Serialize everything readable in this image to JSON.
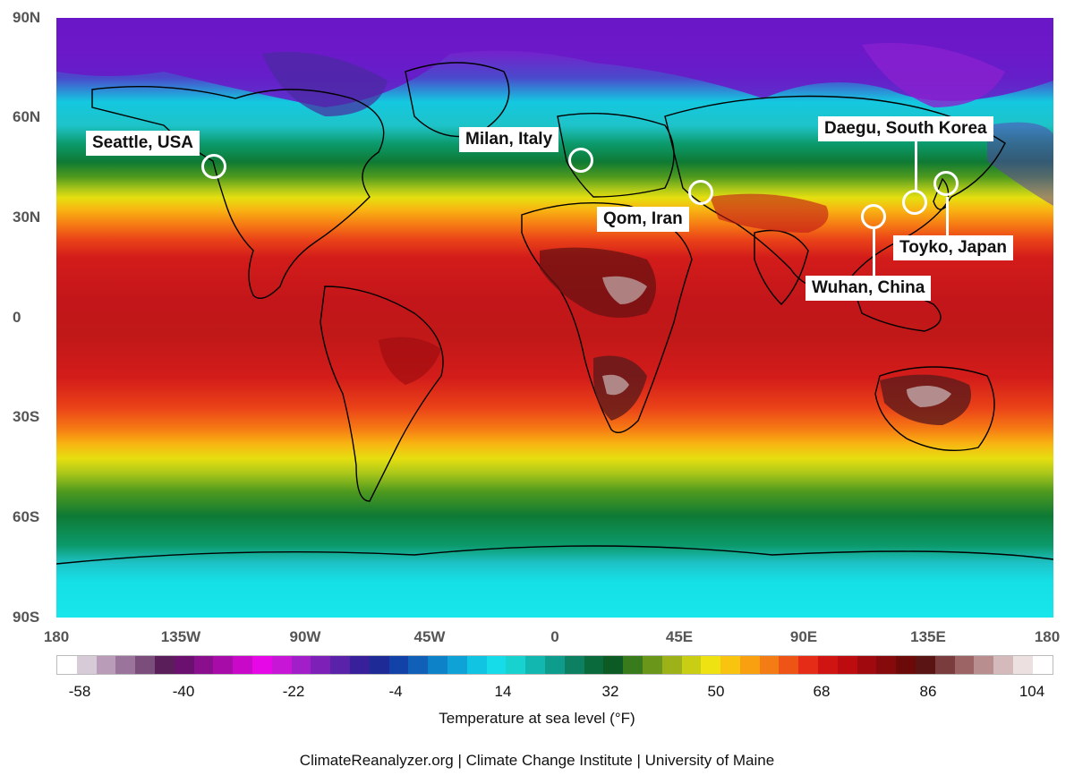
{
  "map": {
    "lat_ticks": [
      "90N",
      "60N",
      "30N",
      "0",
      "30S",
      "60S",
      "90S"
    ],
    "lon_ticks": [
      "180",
      "135W",
      "90W",
      "45W",
      "0",
      "45E",
      "90E",
      "135E",
      "180"
    ],
    "zone_colors": [
      "#14e0e6",
      "#1ec3c8",
      "#0c9a6c",
      "#0e7a34",
      "#4f9a1e",
      "#a9c61a",
      "#e6df10",
      "#f8b412",
      "#f67a14",
      "#ea4218",
      "#d31c1a",
      "#b30e12",
      "#a10d10"
    ],
    "polar_colors": {
      "north": "#6a18c8",
      "north_deep": "#8420cf"
    },
    "land_outline_color": "#000000",
    "hot_spot_colors": {
      "dark": "#5e1a1a",
      "light": "#b69494"
    }
  },
  "locations": [
    {
      "name": "Seattle, USA",
      "icon": "circle-marker"
    },
    {
      "name": "Milan, Italy",
      "icon": "circle-marker"
    },
    {
      "name": "Qom, Iran",
      "icon": "circle-marker"
    },
    {
      "name": "Daegu, South Korea",
      "icon": "circle-marker"
    },
    {
      "name": "Wuhan, China",
      "icon": "circle-marker"
    },
    {
      "name": "Toyko, Japan",
      "icon": "circle-marker"
    }
  ],
  "legend": {
    "title": "Temperature at sea level (°F)",
    "labels": [
      "-58",
      "-40",
      "-22",
      "-4",
      "14",
      "32",
      "50",
      "68",
      "86",
      "104"
    ],
    "swatches": [
      "#ffffff",
      "#d8cbd8",
      "#b89cb8",
      "#9a749a",
      "#7a4d7a",
      "#5a1f5a",
      "#6c1070",
      "#8a0f8c",
      "#a80ca8",
      "#c80ac8",
      "#e608e6",
      "#c816d6",
      "#a21ec8",
      "#7c20b8",
      "#5a22a8",
      "#38209a",
      "#1e2a96",
      "#1242a8",
      "#1060b8",
      "#0e82c8",
      "#0ea2d6",
      "#10c4e2",
      "#16dcea",
      "#18d2d0",
      "#12b8b0",
      "#0e9c8c",
      "#0c8060",
      "#0a6a3c",
      "#0c5a24",
      "#387a1c",
      "#6a961a",
      "#9cb218",
      "#c8ce14",
      "#eee212",
      "#f8c410",
      "#f8a010",
      "#f47c14",
      "#ee5416",
      "#e42c16",
      "#d01412",
      "#bc0c10",
      "#a00a0e",
      "#860a0c",
      "#6c0a0a",
      "#5a1414",
      "#7a3c3c",
      "#9c6464",
      "#b88e8e",
      "#d4baba",
      "#ece0e0",
      "#ffffff"
    ]
  },
  "source": "ClimateReanalyzer.org | Climate Change Institute | University of Maine"
}
